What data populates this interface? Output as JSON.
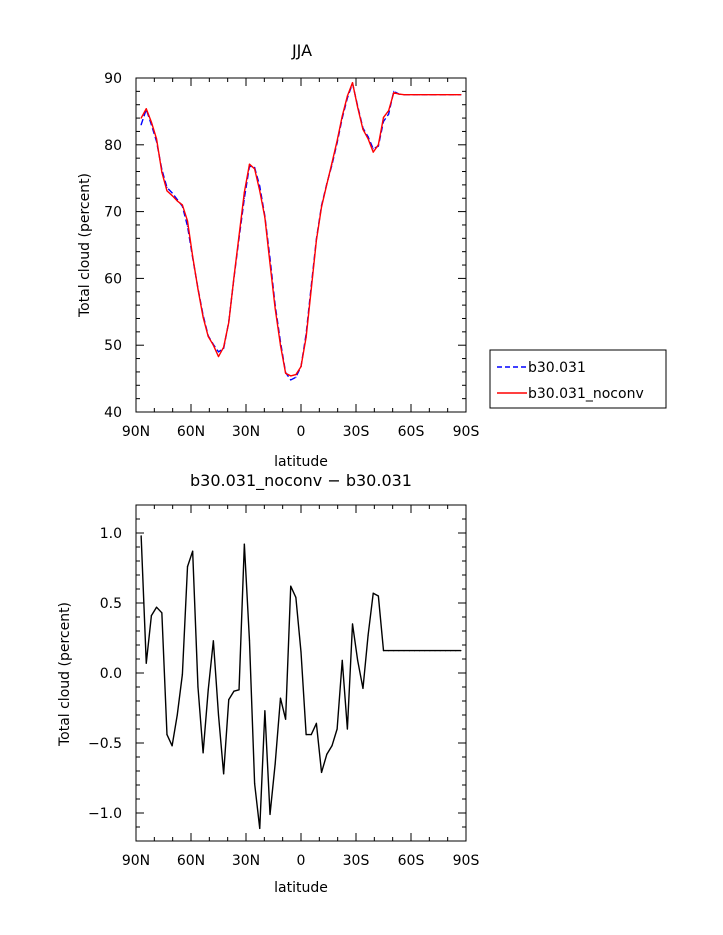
{
  "chart_data": [
    {
      "type": "line",
      "title": "JJA",
      "xlabel": "latitude",
      "ylabel": "Total cloud (percent)",
      "xlim": [
        -90,
        90
      ],
      "ylim": [
        40,
        90
      ],
      "x_ticks": [
        -90,
        -60,
        -30,
        0,
        30,
        60,
        90
      ],
      "x_tick_labels": [
        "90N",
        "60N",
        "30N",
        "0",
        "30S",
        "60S",
        "90S"
      ],
      "y_ticks": [
        40,
        50,
        60,
        70,
        80,
        90
      ],
      "y_tick_labels": [
        "40",
        "50",
        "60",
        "70",
        "80",
        "90"
      ],
      "legend": {
        "position": "right",
        "entries": [
          "b30.031",
          "b30.031_noconv"
        ]
      },
      "x": [
        -87.2,
        -84.4,
        -81.6,
        -78.8,
        -75.9,
        -73.1,
        -70.3,
        -67.5,
        -64.7,
        -61.9,
        -59.1,
        -56.2,
        -53.4,
        -50.6,
        -47.8,
        -45.0,
        -42.2,
        -39.4,
        -36.6,
        -33.8,
        -30.9,
        -28.1,
        -25.3,
        -22.5,
        -19.7,
        -16.9,
        -14.1,
        -11.2,
        -8.4,
        -5.6,
        -2.8,
        0.0,
        2.8,
        5.6,
        8.4,
        11.2,
        14.1,
        16.9,
        19.7,
        22.5,
        25.3,
        28.1,
        30.9,
        33.8,
        36.6,
        39.4,
        42.2,
        45.0,
        47.8,
        50.6,
        53.4,
        56.2,
        59.1,
        61.9,
        64.7,
        67.5,
        70.3,
        73.1,
        75.9,
        78.8,
        81.6,
        84.4,
        87.2
      ],
      "series": [
        {
          "name": "b30.031",
          "color": "#0000ff",
          "style": "dashed",
          "values": [
            83.0,
            85.3,
            83.0,
            80.5,
            76.3,
            73.6,
            72.8,
            71.8,
            70.8,
            67.8,
            63.1,
            58.5,
            54.5,
            51.4,
            50.1,
            49.0,
            49.5,
            53.5,
            60.0,
            66.0,
            72.0,
            76.8,
            76.6,
            73.8,
            69.3,
            63.0,
            56.0,
            50.5,
            45.9,
            44.8,
            45.2,
            46.8,
            51.7,
            58.9,
            65.9,
            70.9,
            74.2,
            77.0,
            80.3,
            84.0,
            87.0,
            89.2,
            85.8,
            82.5,
            81.2,
            79.4,
            79.8,
            83.5,
            84.6,
            88.0,
            87.6,
            87.5,
            87.5,
            87.5,
            87.5,
            87.5,
            87.5,
            87.5,
            87.5,
            87.5,
            87.5,
            87.5,
            87.5
          ]
        },
        {
          "name": "b30.031_noconv",
          "color": "#ff0000",
          "style": "solid",
          "values": [
            84.0,
            85.4,
            83.4,
            80.9,
            75.9,
            73.1,
            72.4,
            71.6,
            71.0,
            68.6,
            63.3,
            58.4,
            54.2,
            51.3,
            50.0,
            48.3,
            49.7,
            53.4,
            60.1,
            66.4,
            72.9,
            77.1,
            76.4,
            73.1,
            69.1,
            62.2,
            55.5,
            50.0,
            45.8,
            45.4,
            45.6,
            46.8,
            51.2,
            58.4,
            65.7,
            70.7,
            74.1,
            77.3,
            80.6,
            84.3,
            87.3,
            89.3,
            85.6,
            82.3,
            80.9,
            78.9,
            80.0,
            84.1,
            85.1,
            87.8,
            87.6,
            87.5,
            87.5,
            87.5,
            87.5,
            87.5,
            87.5,
            87.5,
            87.5,
            87.5,
            87.5,
            87.5,
            87.5
          ]
        }
      ]
    },
    {
      "type": "line",
      "title": "b30.031_noconv − b30.031",
      "xlabel": "latitude",
      "ylabel": "Total cloud (percent)",
      "xlim": [
        -90,
        90
      ],
      "ylim": [
        -1.2,
        1.2
      ],
      "x_ticks": [
        -90,
        -60,
        -30,
        0,
        30,
        60,
        90
      ],
      "x_tick_labels": [
        "90N",
        "60N",
        "30N",
        "0",
        "30S",
        "60S",
        "90S"
      ],
      "y_ticks": [
        -1.0,
        -0.5,
        0.0,
        0.5,
        1.0
      ],
      "y_tick_labels": [
        "−1.0",
        "−0.5",
        "0.0",
        "0.5",
        "1.0"
      ],
      "x": [
        -87.2,
        -84.4,
        -81.6,
        -78.8,
        -75.9,
        -73.1,
        -70.3,
        -67.5,
        -64.7,
        -61.9,
        -59.1,
        -56.2,
        -53.4,
        -50.6,
        -47.8,
        -45.0,
        -42.2,
        -39.4,
        -36.6,
        -33.8,
        -30.9,
        -28.1,
        -25.3,
        -22.5,
        -19.7,
        -16.9,
        -14.1,
        -11.2,
        -8.4,
        -5.6,
        -2.8,
        0.0,
        2.8,
        5.6,
        8.4,
        11.2,
        14.1,
        16.9,
        19.7,
        22.5,
        25.3,
        28.1,
        30.9,
        33.8,
        36.6,
        39.4,
        42.2,
        45.0,
        47.8,
        50.6,
        53.4,
        56.2,
        59.1,
        61.9,
        64.7,
        67.5,
        70.3,
        73.1,
        75.9,
        78.8,
        81.6,
        84.4,
        87.2
      ],
      "series": [
        {
          "color": "#000000",
          "style": "solid",
          "values": [
            0.98,
            0.07,
            0.41,
            0.47,
            0.43,
            -0.44,
            -0.52,
            -0.3,
            -0.01,
            0.76,
            0.87,
            -0.1,
            -0.57,
            -0.12,
            0.23,
            -0.3,
            -0.72,
            -0.19,
            -0.13,
            -0.12,
            0.92,
            0.23,
            -0.79,
            -1.11,
            -0.27,
            -1.01,
            -0.65,
            -0.18,
            -0.33,
            0.62,
            0.54,
            0.15,
            -0.44,
            -0.44,
            -0.36,
            -0.71,
            -0.58,
            -0.52,
            -0.4,
            0.09,
            -0.4,
            0.35,
            0.09,
            -0.11,
            0.27,
            0.57,
            0.55,
            0.16,
            0.16,
            0.16,
            0.16,
            0.16,
            0.16,
            0.16,
            0.16,
            0.16,
            0.16,
            0.16,
            0.16,
            0.16,
            0.16,
            0.16,
            0.16
          ]
        }
      ]
    }
  ]
}
